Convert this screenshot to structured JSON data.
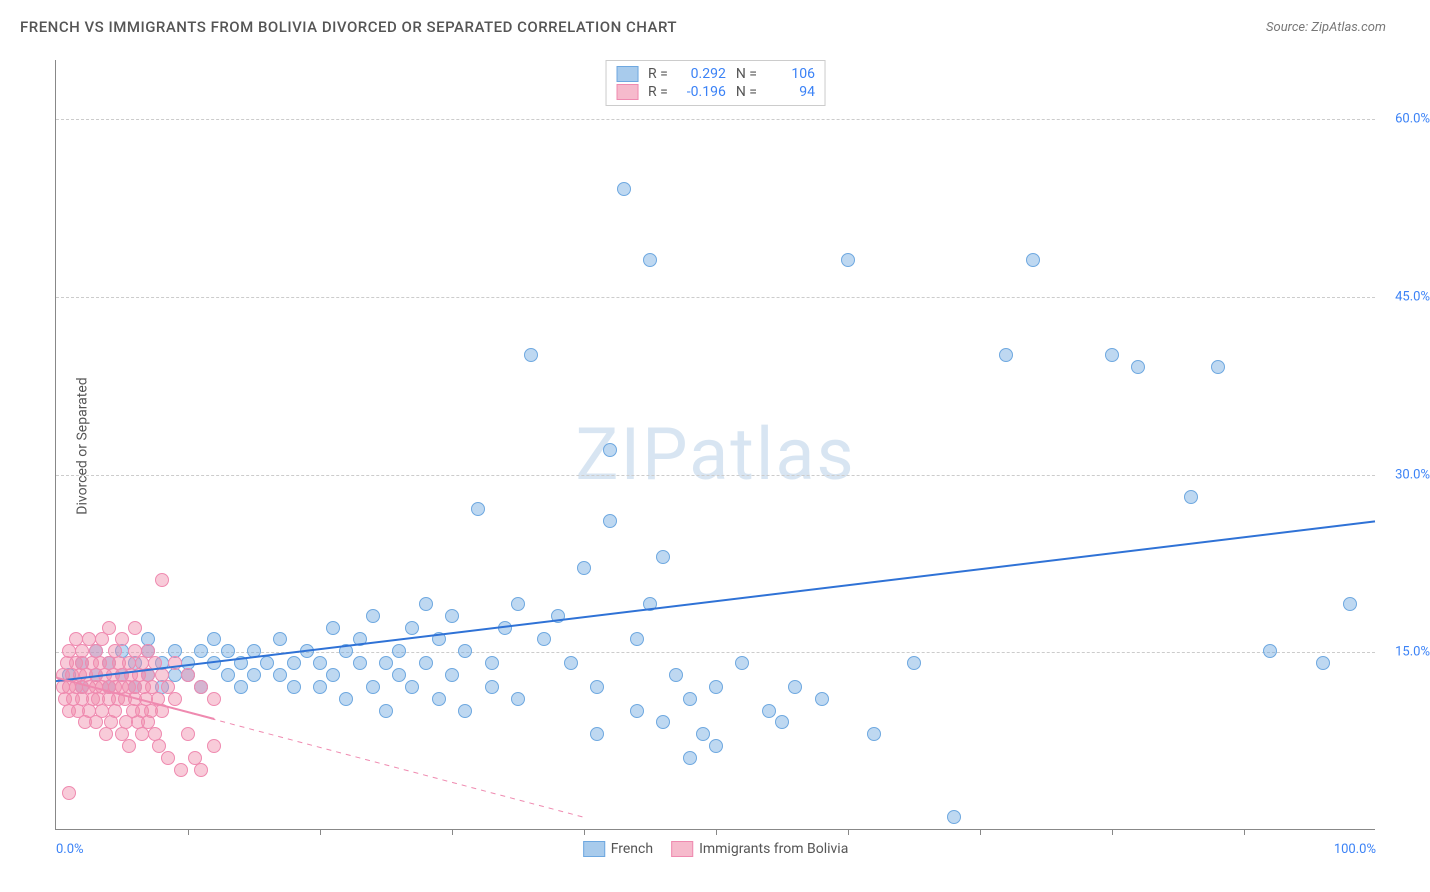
{
  "title": "FRENCH VS IMMIGRANTS FROM BOLIVIA DIVORCED OR SEPARATED CORRELATION CHART",
  "source": "Source: ZipAtlas.com",
  "watermark": "ZIPatlas",
  "y_axis_title": "Divorced or Separated",
  "chart": {
    "type": "scatter",
    "xlim": [
      0,
      100
    ],
    "ylim": [
      0,
      65
    ],
    "x_ticks_major": [
      0,
      100
    ],
    "x_ticks_minor": [
      10,
      20,
      30,
      40,
      50,
      60,
      70,
      80,
      90
    ],
    "x_tick_labels": [
      "0.0%",
      "100.0%"
    ],
    "y_ticks": [
      15,
      30,
      45,
      60
    ],
    "y_tick_labels": [
      "15.0%",
      "30.0%",
      "45.0%",
      "60.0%"
    ],
    "background_color": "#ffffff",
    "grid_color": "#cccccc",
    "axis_color": "#888888",
    "marker_radius": 7,
    "series": [
      {
        "name": "French",
        "color_fill": "rgba(110,168,224,0.45)",
        "color_stroke": "#6ea8e0",
        "trend": {
          "x1": 0,
          "y1": 12.5,
          "x2": 100,
          "y2": 26,
          "color": "#2f72d6",
          "width": 2,
          "dash": "none"
        },
        "R": "0.292",
        "N": "106",
        "points": [
          [
            1,
            13
          ],
          [
            2,
            12
          ],
          [
            2,
            14
          ],
          [
            3,
            13
          ],
          [
            3,
            15
          ],
          [
            4,
            12
          ],
          [
            4,
            14
          ],
          [
            5,
            13
          ],
          [
            5,
            15
          ],
          [
            6,
            12
          ],
          [
            6,
            14
          ],
          [
            7,
            13
          ],
          [
            7,
            15
          ],
          [
            7,
            16
          ],
          [
            8,
            12
          ],
          [
            8,
            14
          ],
          [
            9,
            13
          ],
          [
            9,
            15
          ],
          [
            10,
            14
          ],
          [
            10,
            13
          ],
          [
            11,
            12
          ],
          [
            11,
            15
          ],
          [
            12,
            14
          ],
          [
            12,
            16
          ],
          [
            13,
            13
          ],
          [
            13,
            15
          ],
          [
            14,
            14
          ],
          [
            14,
            12
          ],
          [
            15,
            13
          ],
          [
            15,
            15
          ],
          [
            16,
            14
          ],
          [
            17,
            13
          ],
          [
            17,
            16
          ],
          [
            18,
            14
          ],
          [
            18,
            12
          ],
          [
            19,
            15
          ],
          [
            20,
            14
          ],
          [
            20,
            12
          ],
          [
            21,
            13
          ],
          [
            21,
            17
          ],
          [
            22,
            15
          ],
          [
            22,
            11
          ],
          [
            23,
            14
          ],
          [
            23,
            16
          ],
          [
            24,
            12
          ],
          [
            24,
            18
          ],
          [
            25,
            14
          ],
          [
            25,
            10
          ],
          [
            26,
            15
          ],
          [
            26,
            13
          ],
          [
            27,
            17
          ],
          [
            27,
            12
          ],
          [
            28,
            14
          ],
          [
            28,
            19
          ],
          [
            29,
            11
          ],
          [
            29,
            16
          ],
          [
            30,
            13
          ],
          [
            30,
            18
          ],
          [
            31,
            15
          ],
          [
            31,
            10
          ],
          [
            32,
            27
          ],
          [
            33,
            14
          ],
          [
            33,
            12
          ],
          [
            34,
            17
          ],
          [
            35,
            19
          ],
          [
            35,
            11
          ],
          [
            36,
            40
          ],
          [
            37,
            16
          ],
          [
            38,
            18
          ],
          [
            39,
            14
          ],
          [
            40,
            22
          ],
          [
            41,
            12
          ],
          [
            41,
            8
          ],
          [
            42,
            32
          ],
          [
            42,
            26
          ],
          [
            43,
            54
          ],
          [
            44,
            16
          ],
          [
            44,
            10
          ],
          [
            45,
            48
          ],
          [
            45,
            19
          ],
          [
            46,
            23
          ],
          [
            46,
            9
          ],
          [
            47,
            13
          ],
          [
            48,
            11
          ],
          [
            48,
            6
          ],
          [
            49,
            8
          ],
          [
            50,
            12
          ],
          [
            50,
            7
          ],
          [
            52,
            14
          ],
          [
            54,
            10
          ],
          [
            55,
            9
          ],
          [
            56,
            12
          ],
          [
            58,
            11
          ],
          [
            60,
            48
          ],
          [
            62,
            8
          ],
          [
            65,
            14
          ],
          [
            68,
            1
          ],
          [
            72,
            40
          ],
          [
            74,
            48
          ],
          [
            80,
            40
          ],
          [
            82,
            39
          ],
          [
            86,
            28
          ],
          [
            88,
            39
          ],
          [
            92,
            15
          ],
          [
            96,
            14
          ],
          [
            98,
            19
          ]
        ]
      },
      {
        "name": "Immigrants from Bolivia",
        "color_fill": "rgba(240,140,170,0.45)",
        "color_stroke": "#ef8ab0",
        "trend": {
          "x1": 0,
          "y1": 12.8,
          "x2": 40,
          "y2": 1,
          "color": "#ef8ab0",
          "width": 1,
          "dash": "5,5"
        },
        "R": "-0.196",
        "N": "94",
        "points": [
          [
            0.5,
            12
          ],
          [
            0.5,
            13
          ],
          [
            0.7,
            11
          ],
          [
            0.8,
            14
          ],
          [
            1,
            12
          ],
          [
            1,
            15
          ],
          [
            1,
            10
          ],
          [
            1.2,
            13
          ],
          [
            1.3,
            11
          ],
          [
            1.5,
            14
          ],
          [
            1.5,
            12
          ],
          [
            1.5,
            16
          ],
          [
            1.7,
            10
          ],
          [
            1.8,
            13
          ],
          [
            2,
            12
          ],
          [
            2,
            15
          ],
          [
            2,
            11
          ],
          [
            2,
            14
          ],
          [
            2.2,
            9
          ],
          [
            2.3,
            13
          ],
          [
            2.5,
            12
          ],
          [
            2.5,
            16
          ],
          [
            2.5,
            10
          ],
          [
            2.7,
            14
          ],
          [
            2.8,
            11
          ],
          [
            3,
            13
          ],
          [
            3,
            12
          ],
          [
            3,
            15
          ],
          [
            3,
            9
          ],
          [
            3.2,
            11
          ],
          [
            3.3,
            14
          ],
          [
            3.5,
            12
          ],
          [
            3.5,
            10
          ],
          [
            3.5,
            16
          ],
          [
            3.7,
            13
          ],
          [
            3.8,
            8
          ],
          [
            4,
            12
          ],
          [
            4,
            14
          ],
          [
            4,
            11
          ],
          [
            4,
            17
          ],
          [
            4.2,
            9
          ],
          [
            4.3,
            13
          ],
          [
            4.5,
            12
          ],
          [
            4.5,
            15
          ],
          [
            4.5,
            10
          ],
          [
            4.7,
            11
          ],
          [
            4.8,
            14
          ],
          [
            5,
            12
          ],
          [
            5,
            13
          ],
          [
            5,
            8
          ],
          [
            5,
            16
          ],
          [
            5.2,
            11
          ],
          [
            5.3,
            9
          ],
          [
            5.5,
            14
          ],
          [
            5.5,
            12
          ],
          [
            5.5,
            7
          ],
          [
            5.7,
            13
          ],
          [
            5.8,
            10
          ],
          [
            6,
            12
          ],
          [
            6,
            15
          ],
          [
            6,
            11
          ],
          [
            6,
            17
          ],
          [
            6.2,
            9
          ],
          [
            6.3,
            13
          ],
          [
            6.5,
            10
          ],
          [
            6.5,
            14
          ],
          [
            6.5,
            8
          ],
          [
            6.7,
            12
          ],
          [
            6.8,
            11
          ],
          [
            7,
            13
          ],
          [
            7,
            9
          ],
          [
            7,
            15
          ],
          [
            7.2,
            10
          ],
          [
            7.3,
            12
          ],
          [
            7.5,
            8
          ],
          [
            7.5,
            14
          ],
          [
            7.7,
            11
          ],
          [
            7.8,
            7
          ],
          [
            8,
            13
          ],
          [
            8,
            10
          ],
          [
            8,
            21
          ],
          [
            8.5,
            12
          ],
          [
            8.5,
            6
          ],
          [
            9,
            11
          ],
          [
            9,
            14
          ],
          [
            9.5,
            5
          ],
          [
            10,
            8
          ],
          [
            10,
            13
          ],
          [
            10.5,
            6
          ],
          [
            11,
            12
          ],
          [
            11,
            5
          ],
          [
            1,
            3
          ],
          [
            12,
            11
          ],
          [
            12,
            7
          ]
        ]
      }
    ]
  },
  "legend_top": {
    "r_label": "R =",
    "n_label": "N ="
  },
  "legend_bottom": [
    {
      "label": "French",
      "color": "rgba(110,168,224,0.6)",
      "stroke": "#6ea8e0"
    },
    {
      "label": "Immigrants from Bolivia",
      "color": "rgba(240,140,170,0.6)",
      "stroke": "#ef8ab0"
    }
  ]
}
